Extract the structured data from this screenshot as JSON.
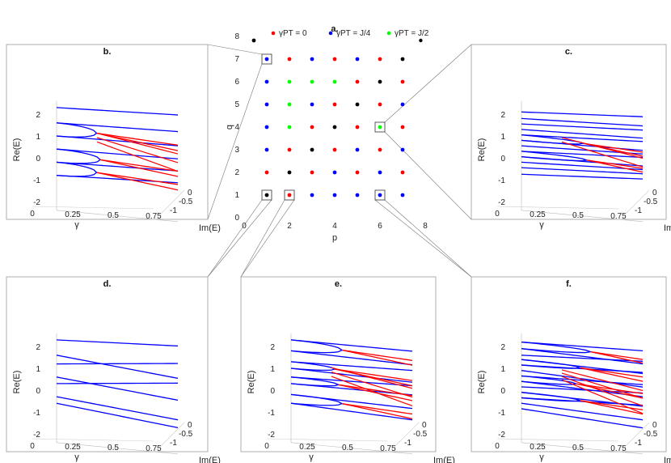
{
  "colors": {
    "blue": "#0000ff",
    "red": "#ff0000",
    "green": "#00ff00",
    "black": "#000000",
    "axis": "#444444",
    "frame": "#999999"
  },
  "chart_data": [
    {
      "id": "a",
      "type": "scatter",
      "title": "a.",
      "xlabel": "p",
      "ylabel": "q",
      "xlim": [
        0,
        8
      ],
      "ylim": [
        0,
        8
      ],
      "xticks": [
        "0",
        "2",
        "4",
        "6",
        "8"
      ],
      "yticks": [
        "0",
        "1",
        "2",
        "3",
        "4",
        "5",
        "6",
        "7",
        "8"
      ],
      "legend": [
        {
          "label": "γPT = 0",
          "color": "red"
        },
        {
          "label": "γPT = J/4",
          "color": "blue"
        },
        {
          "label": "γPT = J/2",
          "color": "green"
        }
      ],
      "grid_rows": [
        {
          "q": 1,
          "colors": [
            "black",
            "red",
            "blue",
            "blue",
            "blue",
            "blue",
            "blue"
          ]
        },
        {
          "q": 2,
          "colors": [
            "red",
            "black",
            "red",
            "blue",
            "red",
            "blue",
            "red"
          ]
        },
        {
          "q": 3,
          "colors": [
            "blue",
            "red",
            "black",
            "red",
            "blue",
            "red",
            "blue"
          ]
        },
        {
          "q": 4,
          "colors": [
            "blue",
            "green",
            "red",
            "black",
            "red",
            "green",
            "red"
          ]
        },
        {
          "q": 5,
          "colors": [
            "blue",
            "green",
            "blue",
            "red",
            "black",
            "red",
            "blue"
          ]
        },
        {
          "q": 6,
          "colors": [
            "blue",
            "green",
            "green",
            "green",
            "red",
            "black",
            "red"
          ]
        },
        {
          "q": 7,
          "colors": [
            "blue",
            "red",
            "blue",
            "red",
            "blue",
            "red",
            "black"
          ]
        }
      ],
      "extra_points": [
        {
          "p": 0.5,
          "q": 8,
          "color": "black"
        }
      ],
      "highlighted": [
        {
          "p": 1,
          "q": 7,
          "panel": "b"
        },
        {
          "p": 6,
          "q": 4,
          "panel": "c"
        },
        {
          "p": 1,
          "q": 1,
          "panel": "d"
        },
        {
          "p": 2,
          "q": 1,
          "panel": "e"
        },
        {
          "p": 6,
          "q": 1,
          "panel": "f"
        }
      ]
    },
    {
      "id": "b",
      "type": "line",
      "title": "b.",
      "xlabel": "γ",
      "ylabel": "Re(E)",
      "zlabel": "Im(E)",
      "xticks": [
        "0",
        "0.25",
        "0.5",
        "0.75"
      ],
      "yticks": [
        "-2",
        "-1",
        "0",
        "1",
        "2"
      ],
      "zticks": [
        "0",
        "-0.5",
        "-1"
      ],
      "levels": [
        2.3,
        1.6,
        1.0,
        0.4,
        -0.2,
        -0.8
      ],
      "slopes": [
        0.15,
        0.1,
        0.06,
        0.06,
        0.1,
        0.15
      ],
      "pairs": [
        [
          1,
          2,
          0.55
        ],
        [
          3,
          4,
          0.6
        ],
        [
          4,
          5,
          0.55
        ]
      ],
      "red_fan": [
        0.8,
        0.6,
        0.4
      ]
    },
    {
      "id": "c",
      "type": "line",
      "title": "c.",
      "xlabel": "γ",
      "ylabel": "Re(E)",
      "zlabel": "Im(E)",
      "xticks": [
        "0",
        "0.25",
        "0.5",
        "0.75"
      ],
      "yticks": [
        "-2",
        "-1",
        "0",
        "1",
        "2"
      ],
      "zticks": [
        "0",
        "-0.5",
        "-1"
      ],
      "levels": [
        2.1,
        1.8,
        1.55,
        1.3,
        1.05,
        0.8,
        0.55,
        0.3,
        0.05,
        -0.2,
        -0.45,
        -0.75
      ],
      "slopes": [
        0.25,
        0.15,
        0.2,
        0.1,
        0.18,
        0.05,
        0.12,
        0.2,
        0.08,
        0.15,
        0.2,
        0.25
      ],
      "pairs": [
        [
          4,
          5,
          0.85
        ],
        [
          7,
          8,
          0.9
        ]
      ],
      "red_fan": [
        0.6,
        0.4
      ]
    },
    {
      "id": "d",
      "type": "line",
      "title": "d.",
      "xlabel": "γ",
      "ylabel": "Re(E)",
      "zlabel": "Im(E)",
      "xticks": [
        "0",
        "0.25",
        "0.5",
        "0.75"
      ],
      "yticks": [
        "-2",
        "-1",
        "0",
        "1",
        "2"
      ],
      "zticks": [
        "0",
        "-0.5",
        "-1"
      ],
      "levels": [
        2.3,
        1.6,
        1.2,
        0.6,
        0.3,
        -0.3,
        -0.6
      ],
      "slopes": [
        0.2,
        -0.45,
        0.45,
        -0.45,
        0.45,
        -0.45,
        -0.5
      ],
      "pairs": [],
      "red_fan": []
    },
    {
      "id": "e",
      "type": "line",
      "title": "e.",
      "xlabel": "γ",
      "ylabel": "Re(E)",
      "zlabel": "Im(E)",
      "xticks": [
        "0",
        "0.25",
        "0.5",
        "0.75"
      ],
      "yticks": [
        "-2",
        "-1",
        "0",
        "1",
        "2"
      ],
      "zticks": [
        "0",
        "-0.5",
        "-1"
      ],
      "levels": [
        2.3,
        1.8,
        1.3,
        1.0,
        0.6,
        0.3,
        -0.2,
        -0.6
      ],
      "slopes": [
        0.0,
        -0.1,
        0.1,
        -0.1,
        0.1,
        0.0,
        -0.1,
        -0.2
      ],
      "pairs": [
        [
          0,
          1,
          0.7
        ],
        [
          2,
          3,
          0.6
        ],
        [
          4,
          5,
          0.65
        ],
        [
          6,
          7,
          0.7
        ]
      ],
      "red_fan": [
        0.7,
        0.5,
        0.3
      ]
    },
    {
      "id": "f",
      "type": "line",
      "title": "f.",
      "xlabel": "γ",
      "ylabel": "Re(E)",
      "zlabel": "Im(E)",
      "xticks": [
        "0",
        "0.25",
        "0.5",
        "0.75"
      ],
      "yticks": [
        "-2",
        "-1",
        "0",
        "1",
        "2"
      ],
      "zticks": [
        "0",
        "-0.5",
        "-1"
      ],
      "levels": [
        2.2,
        1.9,
        1.6,
        1.4,
        1.15,
        0.9,
        0.65,
        0.4,
        0.15,
        -0.1,
        -0.35,
        -0.6,
        -0.85
      ],
      "slopes": [
        0.1,
        -0.15,
        0.2,
        -0.1,
        0.15,
        -0.2,
        0.1,
        -0.15,
        0.2,
        -0.1,
        0.15,
        -0.2,
        -0.3
      ],
      "pairs": [
        [
          0,
          1,
          0.95
        ],
        [
          3,
          4,
          0.8
        ],
        [
          6,
          7,
          0.75
        ],
        [
          9,
          10,
          0.8
        ]
      ],
      "red_fan": [
        0.6,
        0.45,
        0.3,
        0.15
      ]
    }
  ]
}
